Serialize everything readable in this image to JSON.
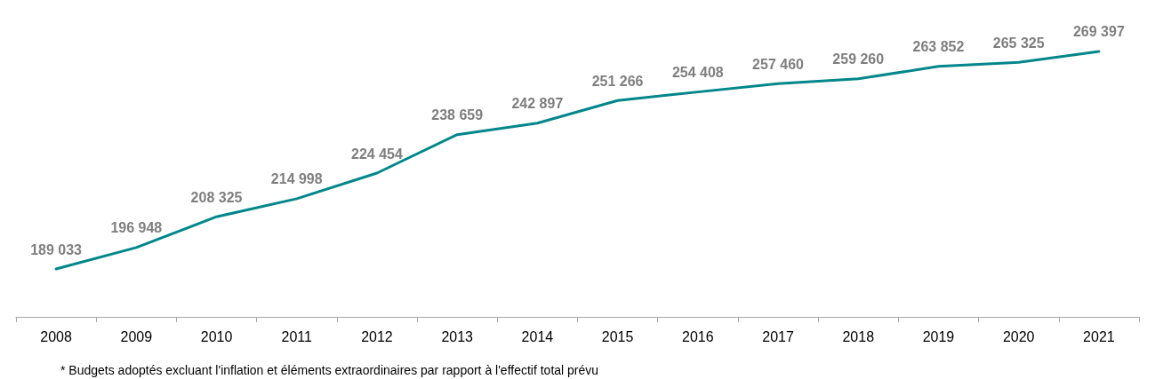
{
  "chart_data": {
    "type": "line",
    "categories": [
      "2008",
      "2009",
      "2010",
      "2011",
      "2012",
      "2013",
      "2014",
      "2015",
      "2016",
      "2017",
      "2018",
      "2019",
      "2020",
      "2021"
    ],
    "series": [
      {
        "color": "#00868b",
        "values": [
          189033,
          196948,
          208325,
          214998,
          224454,
          238659,
          242897,
          251266,
          254408,
          257460,
          259260,
          263852,
          265325,
          269397
        ],
        "value_labels": [
          "189 033",
          "196 948",
          "208 325",
          "214 998",
          "224 454",
          "238 659",
          "242 897",
          "251 266",
          "254 408",
          "257 460",
          "259 260",
          "263 852",
          "265 325",
          "269 397"
        ]
      }
    ],
    "annotations": [
      "* Budgets adoptés excluant l'inflation et éléments extraordinaires par rapport à l'effectif total prévu"
    ],
    "marker": "none",
    "line_style": "solid",
    "grid": false
  }
}
